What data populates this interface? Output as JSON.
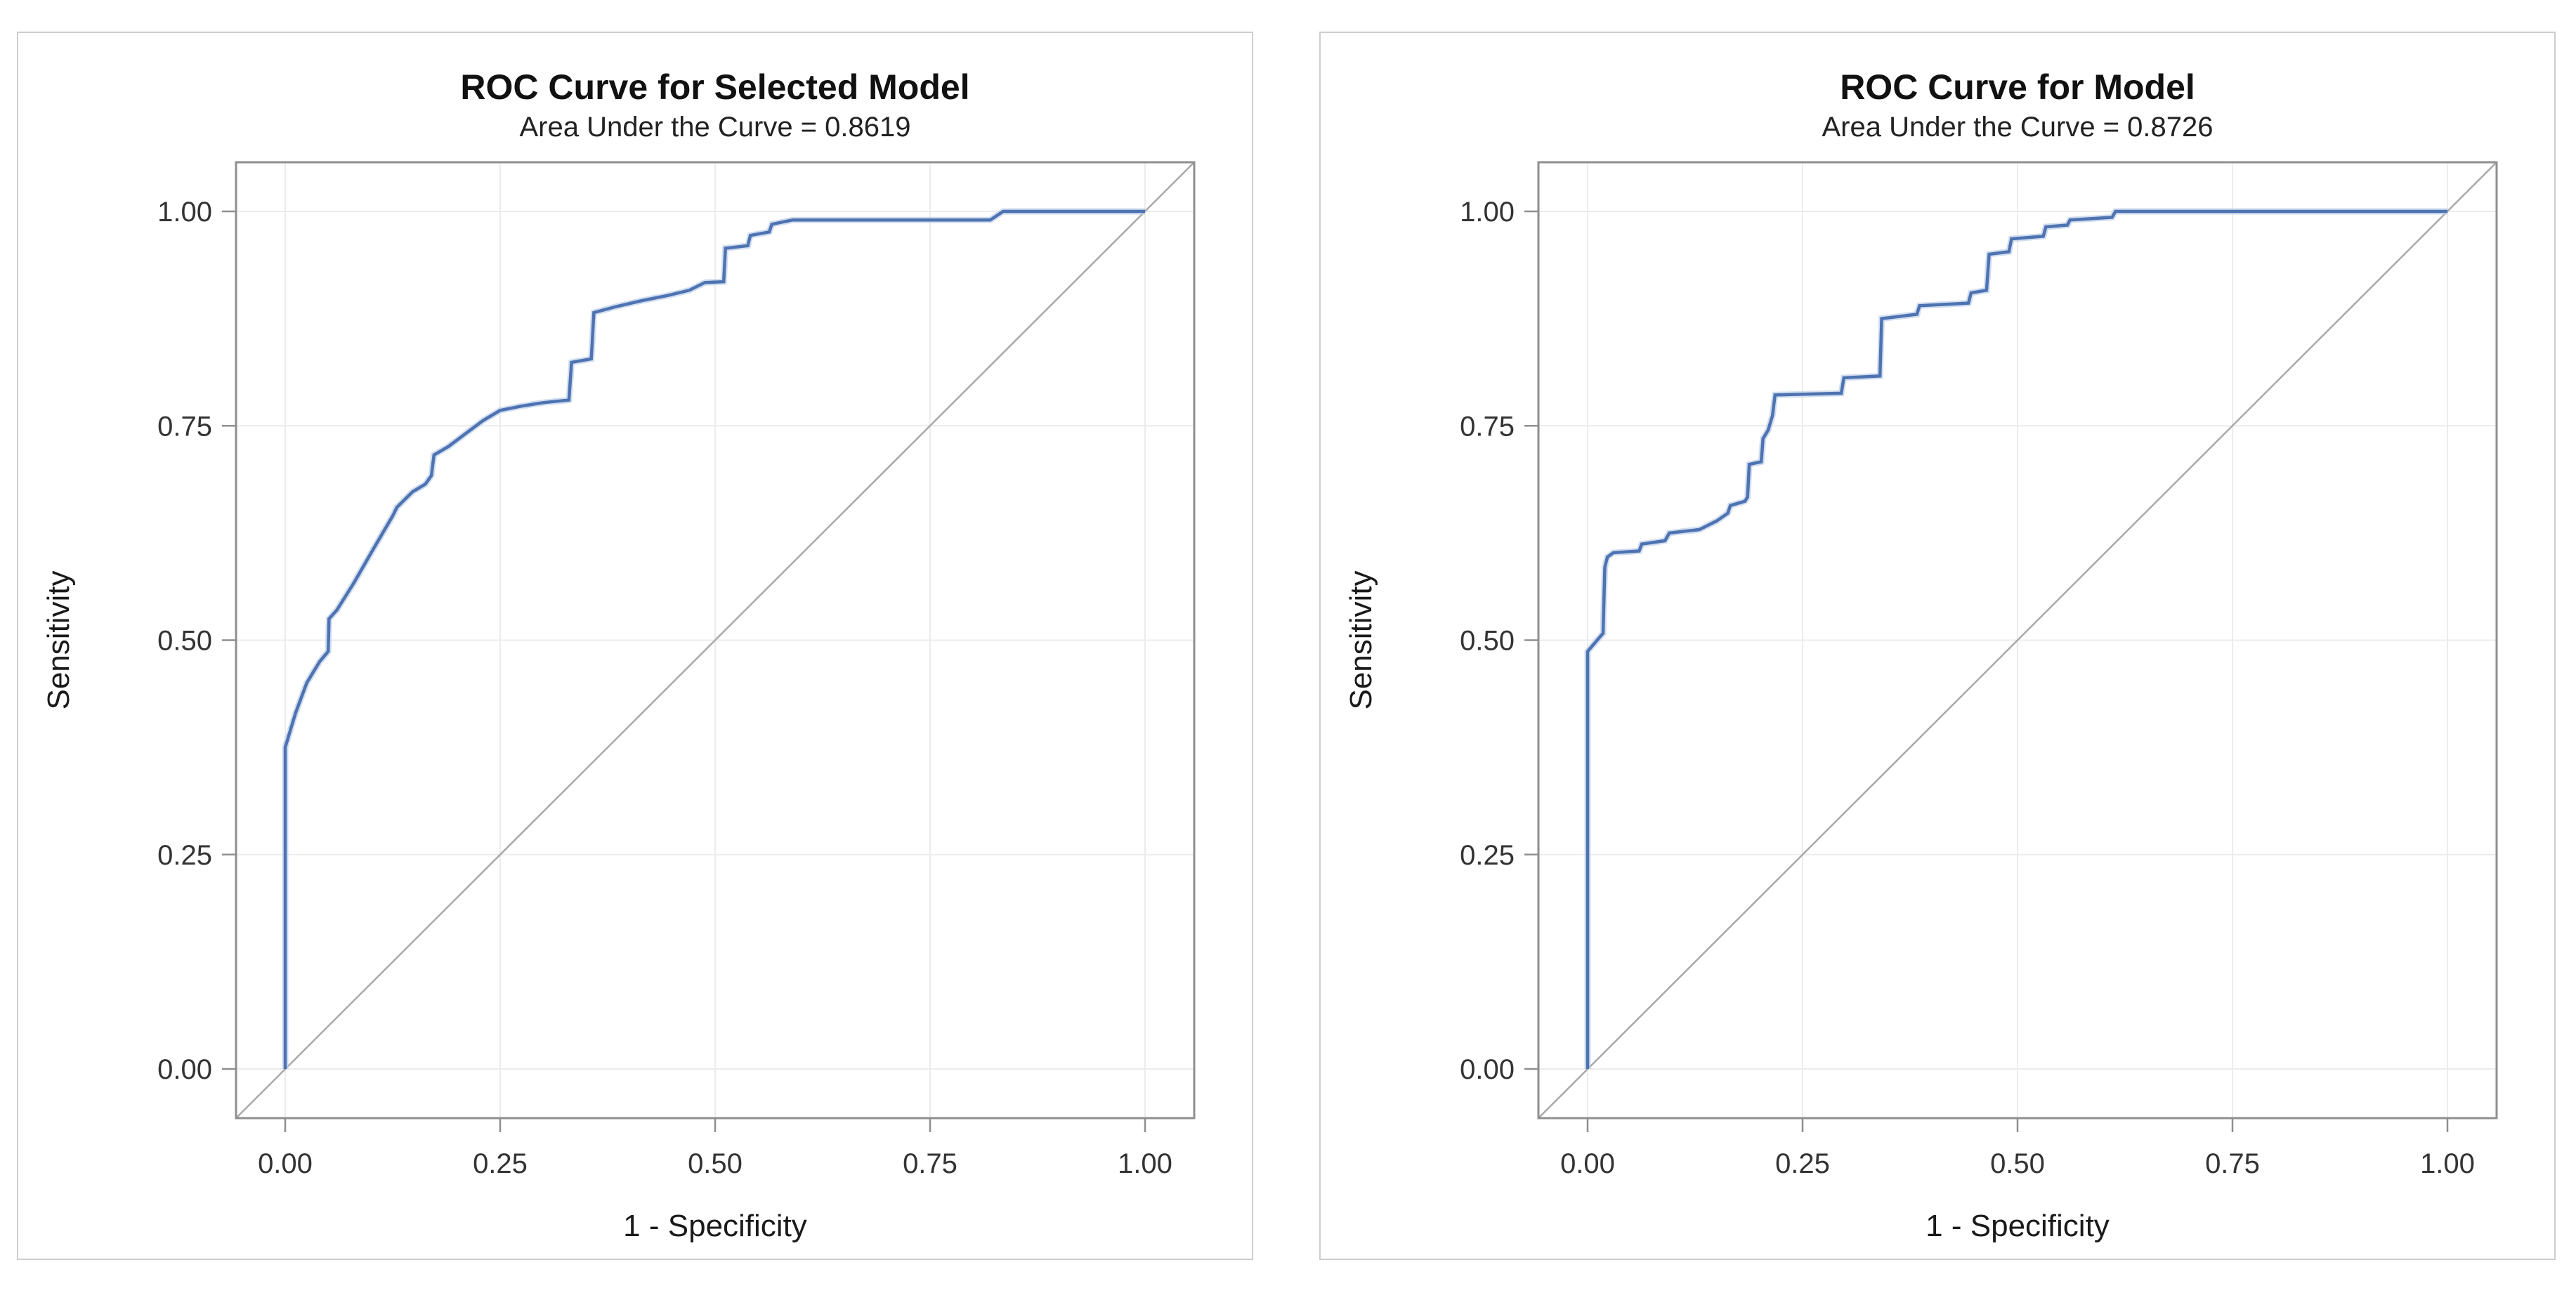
{
  "colors": {
    "curve": "#4e73b2",
    "curve_halo": "#c3d3ea",
    "diagonal": "#a9a9a9",
    "frame": "#8f8f8f",
    "grid": "#ececec",
    "tick": "#8f8f8f",
    "tick_label": "#333333",
    "axis_label": "#1a1a1a",
    "panel_border": "#cdcdcd",
    "background": "#ffffff"
  },
  "chart_data": [
    {
      "type": "line",
      "title": "ROC Curve for Selected Model",
      "subtitle": "Area Under the Curve = 0.8619",
      "auc": 0.8619,
      "xlabel": "1 - Specificity",
      "ylabel": "Sensitivity",
      "xlim": [
        0,
        1
      ],
      "ylim": [
        0,
        1
      ],
      "grid": true,
      "x_tick_values": [
        0,
        0.25,
        0.5,
        0.75,
        1
      ],
      "y_tick_values": [
        0,
        0.25,
        0.5,
        0.75,
        1
      ],
      "x_tick_labels": [
        "0.00",
        "0.25",
        "0.50",
        "0.75",
        "1.00"
      ],
      "y_tick_labels": [
        "0.00",
        "0.25",
        "0.50",
        "0.75",
        "1.00"
      ],
      "diagonal_reference": true,
      "series": [
        {
          "name": "ROC curve",
          "points": [
            [
              0,
              0
            ],
            [
              0,
              0.375
            ],
            [
              0.012,
              0.415
            ],
            [
              0.025,
              0.45
            ],
            [
              0.04,
              0.475
            ],
            [
              0.05,
              0.487
            ],
            [
              0.051,
              0.525
            ],
            [
              0.06,
              0.535
            ],
            [
              0.08,
              0.567
            ],
            [
              0.1,
              0.602
            ],
            [
              0.125,
              0.645
            ],
            [
              0.13,
              0.655
            ],
            [
              0.148,
              0.673
            ],
            [
              0.163,
              0.682
            ],
            [
              0.17,
              0.692
            ],
            [
              0.173,
              0.716
            ],
            [
              0.19,
              0.726
            ],
            [
              0.21,
              0.741
            ],
            [
              0.23,
              0.756
            ],
            [
              0.25,
              0.768
            ],
            [
              0.275,
              0.773
            ],
            [
              0.3,
              0.777
            ],
            [
              0.33,
              0.78
            ],
            [
              0.333,
              0.824
            ],
            [
              0.356,
              0.828
            ],
            [
              0.359,
              0.882
            ],
            [
              0.385,
              0.889
            ],
            [
              0.415,
              0.896
            ],
            [
              0.445,
              0.902
            ],
            [
              0.47,
              0.908
            ],
            [
              0.488,
              0.917
            ],
            [
              0.51,
              0.918
            ],
            [
              0.512,
              0.957
            ],
            [
              0.538,
              0.96
            ],
            [
              0.541,
              0.972
            ],
            [
              0.563,
              0.976
            ],
            [
              0.566,
              0.985
            ],
            [
              0.59,
              0.99
            ],
            [
              0.82,
              0.99
            ],
            [
              0.835,
              1
            ],
            [
              1,
              1
            ]
          ]
        }
      ]
    },
    {
      "type": "line",
      "title": "ROC Curve for Model",
      "subtitle": "Area Under the Curve = 0.8726",
      "auc": 0.8726,
      "xlabel": "1 - Specificity",
      "ylabel": "Sensitivity",
      "xlim": [
        0,
        1
      ],
      "ylim": [
        0,
        1
      ],
      "grid": true,
      "x_tick_values": [
        0,
        0.25,
        0.5,
        0.75,
        1
      ],
      "y_tick_values": [
        0,
        0.25,
        0.5,
        0.75,
        1
      ],
      "x_tick_labels": [
        "0.00",
        "0.25",
        "0.50",
        "0.75",
        "1.00"
      ],
      "y_tick_labels": [
        "0.00",
        "0.25",
        "0.50",
        "0.75",
        "1.00"
      ],
      "diagonal_reference": true,
      "series": [
        {
          "name": "ROC curve",
          "points": [
            [
              0,
              0
            ],
            [
              0,
              0.487
            ],
            [
              0.018,
              0.508
            ],
            [
              0.02,
              0.585
            ],
            [
              0.023,
              0.597
            ],
            [
              0.03,
              0.602
            ],
            [
              0.06,
              0.604
            ],
            [
              0.063,
              0.612
            ],
            [
              0.09,
              0.616
            ],
            [
              0.095,
              0.625
            ],
            [
              0.13,
              0.629
            ],
            [
              0.15,
              0.639
            ],
            [
              0.163,
              0.648
            ],
            [
              0.166,
              0.657
            ],
            [
              0.183,
              0.662
            ],
            [
              0.186,
              0.667
            ],
            [
              0.188,
              0.705
            ],
            [
              0.202,
              0.708
            ],
            [
              0.204,
              0.735
            ],
            [
              0.21,
              0.745
            ],
            [
              0.215,
              0.762
            ],
            [
              0.218,
              0.786
            ],
            [
              0.295,
              0.788
            ],
            [
              0.298,
              0.806
            ],
            [
              0.34,
              0.808
            ],
            [
              0.342,
              0.875
            ],
            [
              0.383,
              0.88
            ],
            [
              0.386,
              0.89
            ],
            [
              0.443,
              0.893
            ],
            [
              0.446,
              0.905
            ],
            [
              0.464,
              0.908
            ],
            [
              0.467,
              0.95
            ],
            [
              0.49,
              0.953
            ],
            [
              0.493,
              0.968
            ],
            [
              0.53,
              0.971
            ],
            [
              0.533,
              0.982
            ],
            [
              0.558,
              0.984
            ],
            [
              0.561,
              0.99
            ],
            [
              0.61,
              0.993
            ],
            [
              0.614,
              1
            ],
            [
              1,
              1
            ]
          ]
        }
      ]
    }
  ]
}
